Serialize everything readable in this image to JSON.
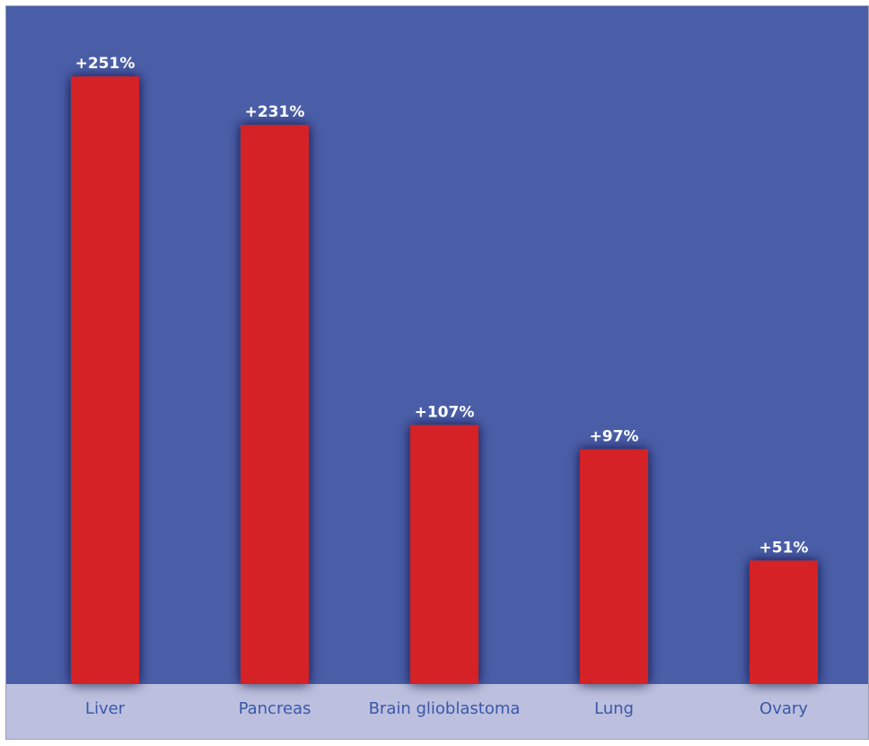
{
  "colors": {
    "plot_background": "#4a5ea8",
    "axis_band": "#bcc0de",
    "bar": "#d42128",
    "value_label": "#ffffff",
    "category_label": "#3b57a8"
  },
  "chart_data": {
    "type": "bar",
    "categories": [
      "Liver",
      "Pancreas",
      "Brain glioblastoma",
      "Lung",
      "Ovary"
    ],
    "values": [
      251,
      231,
      107,
      97,
      51
    ],
    "value_labels": [
      "+251%",
      "+231%",
      "+107%",
      "+97%",
      "+51%"
    ],
    "title": "",
    "xlabel": "",
    "ylabel": "",
    "ylim": [
      0,
      280
    ],
    "grid": false,
    "legend": "none"
  }
}
